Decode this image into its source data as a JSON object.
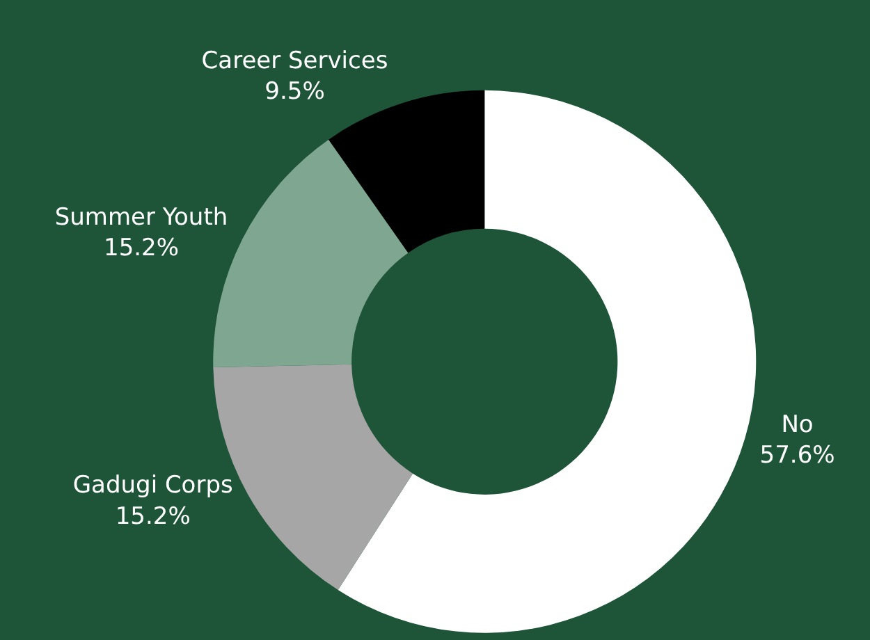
{
  "chart_data": {
    "type": "donut",
    "categories": [
      "No",
      "Gadugi Corps",
      "Summer Youth",
      "Career Services"
    ],
    "values": [
      57.6,
      15.2,
      15.2,
      9.5
    ],
    "value_labels": [
      "57.6%",
      "15.2%",
      "15.2%",
      "9.5%"
    ],
    "colors": [
      "#ffffff",
      "#a6a6a6",
      "#7fa690",
      "#000000"
    ],
    "legend": false
  }
}
